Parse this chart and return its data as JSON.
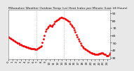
{
  "title": "Milwaukee Weather Outdoor Temp (vs) Heat Index per Minute (Last 24 Hours)",
  "title_fontsize": 3.2,
  "bg_color": "#e8e8e8",
  "plot_bg_color": "#ffffff",
  "line_color": "#ff0000",
  "vline_color": "#999999",
  "vline_x": [
    27,
    54
  ],
  "y_min": 28,
  "y_max": 94,
  "yticks": [
    30,
    40,
    50,
    60,
    70,
    80,
    90
  ],
  "ytick_labels": [
    "30",
    "40",
    "50",
    "60",
    "70",
    "80",
    "90"
  ],
  "ytick_fontsize": 3.2,
  "xtick_fontsize": 2.8,
  "temp_values": [
    58,
    57,
    56,
    55,
    54,
    53,
    52,
    51,
    50,
    49,
    49,
    48,
    48,
    47,
    46,
    46,
    45,
    45,
    44,
    44,
    43,
    43,
    42,
    42,
    42,
    42,
    41,
    41,
    42,
    43,
    44,
    45,
    46,
    50,
    55,
    60,
    65,
    68,
    70,
    72,
    74,
    73,
    72,
    74,
    76,
    78,
    79,
    80,
    81,
    82,
    83,
    84,
    84,
    83,
    83,
    82,
    81,
    80,
    79,
    78,
    76,
    74,
    72,
    70,
    67,
    64,
    61,
    58,
    55,
    52,
    49,
    47,
    45,
    43,
    42,
    41,
    40,
    39,
    38,
    37,
    36,
    36,
    35,
    35,
    34,
    34,
    34,
    34,
    35,
    35,
    36,
    36,
    35,
    34,
    34,
    33,
    33,
    33,
    34,
    36
  ]
}
